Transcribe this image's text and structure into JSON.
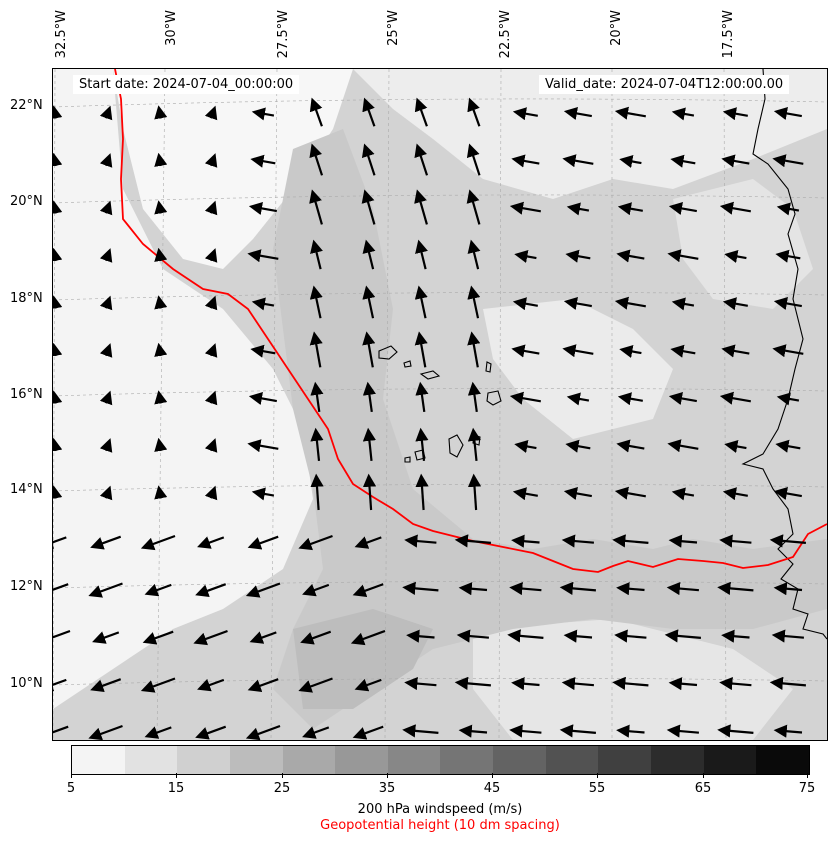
{
  "map": {
    "start_date": "Start date: 2024-07-04_00:00:00",
    "valid_date": "Valid_date: 2024-07-04T12:00:00.00",
    "lon_labels": [
      "32.5°W",
      "30°W",
      "27.5°W",
      "25°W",
      "22.5°W",
      "20°W",
      "17.5°W"
    ],
    "lat_labels": [
      "22°N",
      "20°N",
      "18°N",
      "16°N",
      "14°N",
      "12°N",
      "10°N"
    ],
    "contour_color": "#ff0000"
  },
  "colorbar": {
    "ticks": [
      "5",
      "15",
      "25",
      "35",
      "45",
      "55",
      "65",
      "75"
    ],
    "colors": [
      "#f4f4f4",
      "#e2e2e2",
      "#d0d0d0",
      "#bcbcbc",
      "#a9a9a9",
      "#989898",
      "#878787",
      "#757575",
      "#636363",
      "#525252",
      "#404040",
      "#2c2c2c",
      "#1a1a1a",
      "#0a0a0a"
    ],
    "label": "200 hPa windspeed (m/s)",
    "sublabel": "Geopotential height (10 dm spacing)"
  }
}
